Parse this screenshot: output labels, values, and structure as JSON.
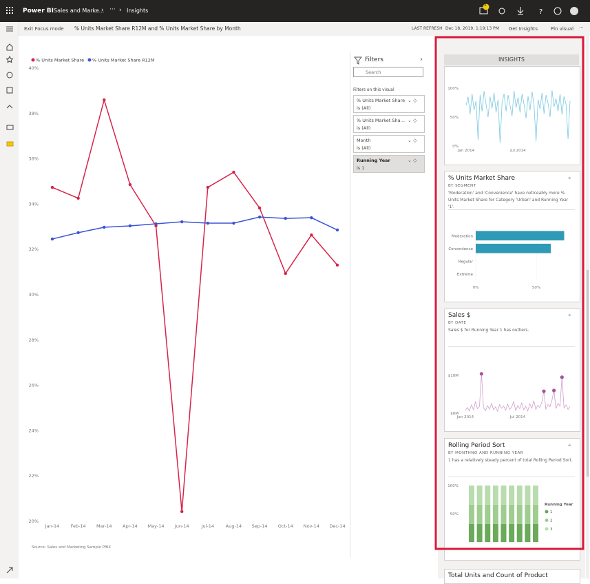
{
  "topbar": {
    "app": "Power BI",
    "breadcrumb": "Sales and Marke...",
    "more": "···",
    "current": "Insights",
    "badge": "1"
  },
  "subbar": {
    "exit": "Exit Focus mode",
    "title": "% Units Market Share R12M and % Units Market Share by Month",
    "refresh_label": "LAST REFRESH",
    "refresh_time": "Dec 18, 2019, 1:19:13 PM",
    "get_insights": "Get Insights",
    "pin": "Pin visual",
    "more": "···"
  },
  "source": "Source: Sales and Marketing Sample PBIX",
  "filters": {
    "title": "Filters",
    "search": "Search",
    "section": "Filters on this visual",
    "items": [
      {
        "name": "% Units Market Share",
        "state": "is (All)"
      },
      {
        "name": "% Units Market Share R12M",
        "state": "is (All)"
      },
      {
        "name": "Month",
        "state": "is (All)"
      },
      {
        "name": "Running Year",
        "state": "is 1"
      }
    ]
  },
  "insights": {
    "header": "INSIGHTS",
    "last_card": "Total Units and Count of Product"
  },
  "chart_data": [
    {
      "type": "line",
      "markers": true,
      "categories": [
        "Jan-14",
        "Feb-14",
        "Mar-14",
        "Apr-14",
        "May-14",
        "Jun-14",
        "Jul-14",
        "Aug-14",
        "Sep-14",
        "Oct-14",
        "Nov-14",
        "Dec-14"
      ],
      "series": [
        {
          "name": "% Units Market Share",
          "color": "#d6234a",
          "values": [
            34.74,
            34.26,
            38.6,
            34.86,
            33.04,
            20.43,
            34.74,
            35.41,
            33.83,
            30.94,
            32.64,
            31.31
          ]
        },
        {
          "name": "% Units Market Share R12M",
          "color": "#3c54d4",
          "values": [
            32.46,
            32.74,
            32.98,
            33.04,
            33.13,
            33.22,
            33.16,
            33.16,
            33.43,
            33.37,
            33.4,
            32.86
          ]
        }
      ],
      "ylim": [
        20,
        40
      ],
      "yticks": [
        {
          "value": 20,
          "label": "20%"
        },
        {
          "value": 22,
          "label": "22%"
        },
        {
          "value": 24,
          "label": "24%"
        },
        {
          "value": 26,
          "label": "26%"
        },
        {
          "value": 28,
          "label": "28%"
        },
        {
          "value": 30,
          "label": "30%"
        },
        {
          "value": 32,
          "label": "32%"
        },
        {
          "value": 34,
          "label": "34%"
        },
        {
          "value": 36,
          "label": "36%"
        },
        {
          "value": 38,
          "label": "38%"
        },
        {
          "value": 40,
          "label": "40%"
        }
      ]
    },
    {
      "type": "line",
      "categories": [
        "Jan 2014",
        null,
        null,
        null,
        null,
        null,
        null,
        null,
        null,
        null,
        null,
        null,
        null,
        null,
        null,
        null,
        null,
        null,
        null,
        null,
        null,
        null,
        null,
        null,
        null,
        null,
        "Jul 2014",
        null,
        null,
        null,
        null,
        null,
        null,
        null,
        null,
        null,
        null,
        null,
        null,
        null,
        null,
        null,
        null,
        null,
        null,
        null,
        null,
        null,
        null,
        null,
        null,
        null,
        null
      ],
      "series": [
        {
          "color": "#79c8e0",
          "values": [
            70,
            85,
            55,
            90,
            62,
            78,
            10,
            88,
            60,
            95,
            72,
            50,
            85,
            65,
            92,
            58,
            80,
            5,
            75,
            90,
            60,
            88,
            70,
            52,
            95,
            66,
            84,
            58,
            90,
            72,
            48,
            86,
            62,
            94,
            70,
            8,
            80,
            64,
            92,
            56,
            88,
            74,
            50,
            96,
            68,
            82,
            60,
            90,
            54,
            86,
            72,
            12,
            78
          ]
        }
      ],
      "ylim": [
        0,
        100
      ],
      "yticks": [
        {
          "value": 0,
          "label": "0%"
        },
        {
          "value": 50,
          "label": "50%"
        },
        {
          "value": 100,
          "label": "100%"
        }
      ]
    },
    {
      "type": "hbar",
      "title": "% Units Market Share",
      "subtitle": "BY SEGMENT",
      "description": "'Moderation' and 'Convenience' have noticeably more % Units Market Share for Category 'Urban' and Running Year '1'.",
      "categories": [
        "Moderation",
        "Convenience",
        "Regular",
        "Extreme"
      ],
      "values": [
        73,
        62,
        0,
        0
      ],
      "color": "#2f9ab5",
      "xlim": [
        0,
        75
      ],
      "xticks": [
        {
          "value": 0,
          "label": "0%"
        },
        {
          "value": 50,
          "label": "50%"
        }
      ]
    },
    {
      "type": "line",
      "title": "Sales $",
      "subtitle": "BY DATE",
      "description": "Sales $ for Running Year 1 has outliers.",
      "categories": [
        "Jan 2014",
        null,
        null,
        null,
        null,
        null,
        null,
        null,
        null,
        null,
        null,
        null,
        null,
        null,
        null,
        null,
        null,
        null,
        null,
        null,
        null,
        null,
        null,
        null,
        null,
        null,
        "Jul 2014",
        null,
        null,
        null,
        null,
        null,
        null,
        null,
        null,
        null,
        null,
        null,
        null,
        null,
        null,
        null,
        null,
        null,
        null,
        null,
        null,
        null,
        null,
        null,
        null,
        null,
        null
      ],
      "series": [
        {
          "color": "#cf9fcb",
          "values": [
            800000,
            1500000,
            600000,
            2200000,
            900000,
            3000000,
            1200000,
            1800000,
            10400000,
            1400000,
            700000,
            2000000,
            1100000,
            2600000,
            900000,
            1700000,
            500000,
            2300000,
            1300000,
            1900000,
            800000,
            2400000,
            1000000,
            1600000,
            3100000,
            700000,
            2000000,
            1200000,
            2700000,
            900000,
            1800000,
            600000,
            2500000,
            1300000,
            3300000,
            1000000,
            2100000,
            1500000,
            2900000,
            5800000,
            1100000,
            2300000,
            1700000,
            3400000,
            6000000,
            1200000,
            2600000,
            1900000,
            9500000,
            1400000,
            2200000,
            1000000,
            1800000
          ]
        },
        {
          "color": "#a3559a",
          "line": false,
          "values": [
            null,
            null,
            null,
            null,
            null,
            null,
            null,
            null,
            10400000,
            null,
            null,
            null,
            null,
            null,
            null,
            null,
            null,
            null,
            null,
            null,
            null,
            null,
            null,
            null,
            null,
            null,
            null,
            null,
            null,
            null,
            null,
            null,
            null,
            null,
            null,
            null,
            null,
            null,
            null,
            5800000,
            null,
            null,
            null,
            null,
            6000000,
            null,
            null,
            null,
            9500000,
            null,
            null,
            null,
            null
          ]
        }
      ],
      "ylim": [
        0,
        10000000
      ],
      "yticks": [
        {
          "value": 0,
          "label": "$0M"
        },
        {
          "value": 10000000,
          "label": "$10M"
        }
      ]
    },
    {
      "type": "stacked",
      "title": "Rolling Period Sort",
      "subtitle": "BY MONTHNO AND RUNNING YEAR",
      "description": "1 has a relatively steady percent of total Rolling Period Sort.",
      "categories": [
        null,
        null,
        null,
        null,
        null,
        null,
        null,
        null,
        null
      ],
      "legend_title": "Running Year",
      "series": [
        {
          "name": "1",
          "color": "#6aaa5a",
          "values": [
            32,
            32,
            32,
            32,
            32,
            32,
            32,
            32,
            32
          ]
        },
        {
          "name": "2",
          "color": "#9fcd90",
          "values": [
            34,
            34,
            34,
            34,
            34,
            34,
            34,
            34,
            34
          ]
        },
        {
          "name": "3",
          "color": "#b9dcae",
          "values": [
            34,
            34,
            34,
            34,
            34,
            34,
            34,
            34,
            34
          ]
        }
      ],
      "ylim": [
        0,
        100
      ],
      "yticks": [
        {
          "value": 50,
          "label": "50%"
        },
        {
          "value": 100,
          "label": "100%"
        }
      ]
    }
  ]
}
